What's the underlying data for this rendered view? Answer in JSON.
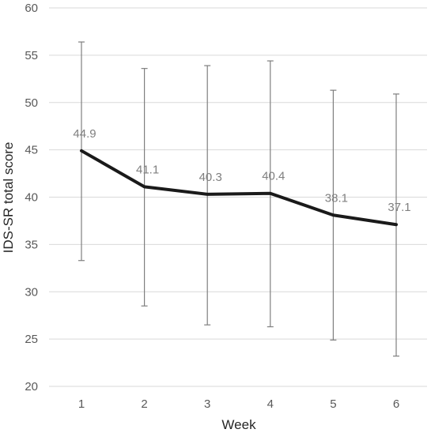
{
  "chart_data": {
    "type": "line",
    "categories": [
      "1",
      "2",
      "3",
      "4",
      "5",
      "6"
    ],
    "series": [
      {
        "values": [
          44.9,
          41.1,
          40.3,
          40.4,
          38.1,
          37.1
        ],
        "data_labels": [
          "44.9",
          "41.1",
          "40.3",
          "40.4",
          "38.1",
          "37.1"
        ],
        "error_upper": [
          56.4,
          53.6,
          53.9,
          54.4,
          51.3,
          50.9
        ],
        "error_lower": [
          33.3,
          28.5,
          26.5,
          26.3,
          24.9,
          23.2
        ]
      }
    ],
    "xlabel": "Week",
    "ylabel": "IDS-SR total score",
    "ylim": [
      20,
      60
    ],
    "yticks": [
      "20",
      "25",
      "30",
      "35",
      "40",
      "45",
      "50",
      "55",
      "60"
    ],
    "grid": true,
    "colors": {
      "line": "#1a1a1a",
      "error_bars": "#7f7f7f",
      "grid": "#d9d9d9"
    }
  }
}
